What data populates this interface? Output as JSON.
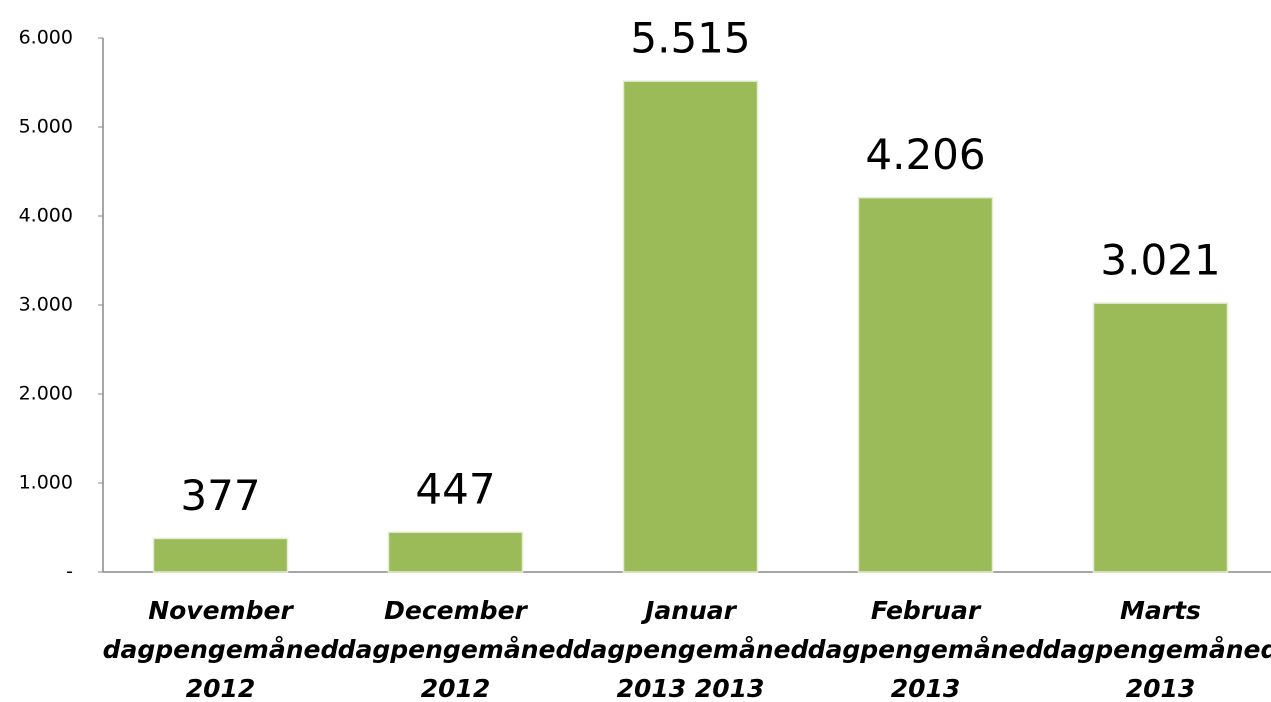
{
  "chart_data": {
    "type": "bar",
    "categories": [
      [
        "November",
        "dagpengemåned",
        "2012"
      ],
      [
        "December",
        "dagpengemåned",
        "2012"
      ],
      [
        "Januar",
        "dagpengemåned",
        "2013 2013"
      ],
      [
        "Februar",
        "dagpengemåned",
        "2013"
      ],
      [
        "Marts",
        "dagpengemåned",
        "2013"
      ]
    ],
    "values": [
      377,
      447,
      5515,
      4206,
      3021
    ],
    "value_labels": [
      "377",
      "447",
      "5.515",
      "4.206",
      "3.021"
    ],
    "color": "#9bbb59",
    "ylim": [
      0,
      6000
    ],
    "yticks": [
      {
        "value": 0,
        "label": "-"
      },
      {
        "value": 1000,
        "label": "1.000"
      },
      {
        "value": 2000,
        "label": "2.000"
      },
      {
        "value": 3000,
        "label": "3.000"
      },
      {
        "value": 4000,
        "label": "4.000"
      },
      {
        "value": 5000,
        "label": "5.000"
      },
      {
        "value": 6000,
        "label": "6.000"
      }
    ],
    "grid": false
  }
}
